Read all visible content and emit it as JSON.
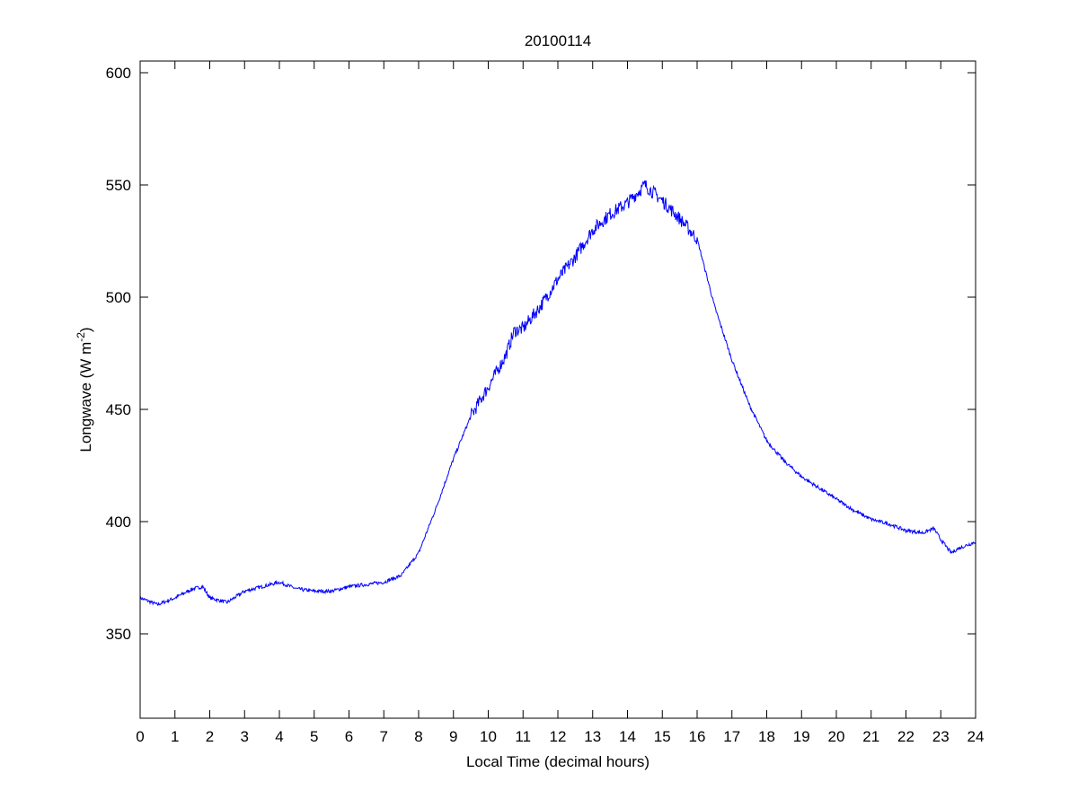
{
  "chart_data": {
    "type": "line",
    "title": "20100114",
    "xlabel": "Local Time (decimal hours)",
    "ylabel": "Longwave (W m",
    "ylabel_superscript": "-2",
    "ylabel_suffix": ")",
    "xlim": [
      0,
      24
    ],
    "ylim": [
      312.4,
      605.2
    ],
    "xticks": [
      0,
      1,
      2,
      3,
      4,
      5,
      6,
      7,
      8,
      9,
      10,
      11,
      12,
      13,
      14,
      15,
      16,
      17,
      18,
      19,
      20,
      21,
      22,
      23,
      24
    ],
    "yticks": [
      350,
      400,
      450,
      500,
      550,
      600
    ],
    "grid": false,
    "legend": "none",
    "series": [
      {
        "name": "Longwave",
        "color": "#0000ff",
        "x": [
          0,
          0.5,
          1.0,
          1.5,
          1.8,
          2.0,
          2.5,
          3.0,
          3.5,
          4.0,
          4.5,
          5.0,
          5.5,
          6.0,
          6.5,
          7.0,
          7.5,
          8.0,
          8.5,
          9.0,
          9.5,
          10.0,
          10.5,
          10.75,
          11.0,
          11.5,
          12.0,
          12.5,
          13.0,
          13.5,
          14.0,
          14.5,
          15.0,
          15.5,
          16.0,
          16.5,
          17.0,
          17.5,
          18.0,
          18.5,
          19.0,
          19.5,
          20.0,
          20.5,
          21.0,
          21.5,
          22.0,
          22.5,
          22.8,
          23.0,
          23.3,
          23.5,
          24.0
        ],
        "y": [
          366,
          363,
          366,
          370,
          371,
          366,
          364,
          369,
          371,
          373,
          370,
          369,
          369,
          371,
          372,
          373,
          376,
          386,
          406,
          428,
          447,
          460,
          474,
          485,
          486,
          496,
          508,
          518,
          530,
          537,
          542,
          550,
          543,
          535,
          526,
          496,
          472,
          452,
          436,
          427,
          420,
          415,
          410,
          405,
          401,
          399,
          396,
          395,
          397,
          392,
          386,
          388,
          391
        ]
      }
    ]
  }
}
